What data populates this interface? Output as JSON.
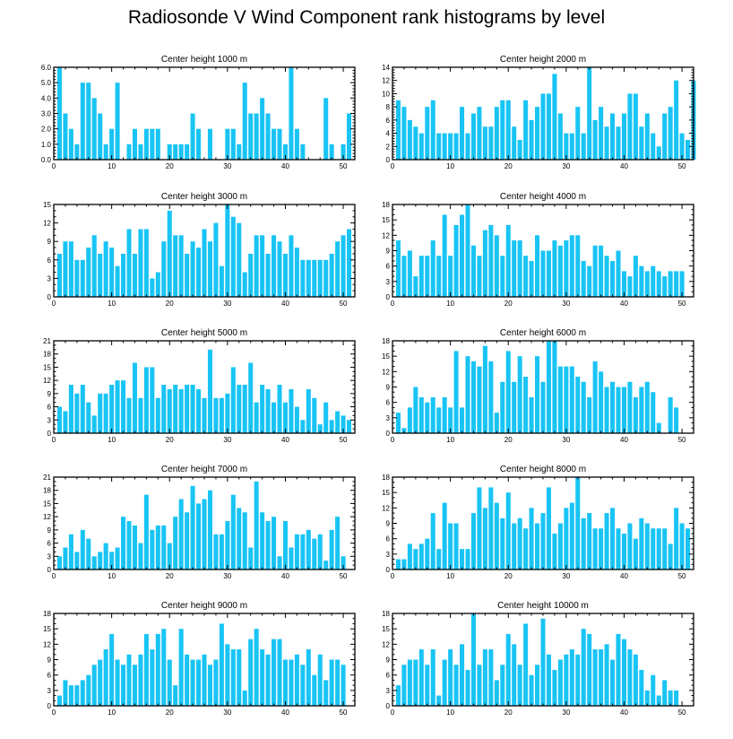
{
  "title": "Radiosonde V Wind Component rank histograms by level",
  "colors": {
    "bar": "#19c4f5",
    "axis": "#000000",
    "background": "#ffffff"
  },
  "chart_data": [
    {
      "type": "bar",
      "title": "Center height 1000 m",
      "xlim": [
        0,
        52
      ],
      "ylim": [
        0,
        6
      ],
      "xticks": [
        0,
        10,
        20,
        30,
        40,
        50
      ],
      "yticks": [
        0,
        1,
        2,
        3,
        4,
        5,
        6
      ],
      "ytick_labels": [
        "0.0",
        "1.0",
        "2.0",
        "3.0",
        "4.0",
        "5.0",
        "6.0"
      ],
      "values": [
        6,
        3,
        2,
        1,
        5,
        5,
        4,
        3,
        1,
        2,
        5,
        0,
        1,
        2,
        1,
        2,
        2,
        2,
        0,
        1,
        1,
        1,
        1,
        3,
        2,
        0,
        2,
        0,
        0,
        2,
        2,
        1,
        5,
        3,
        3,
        4,
        3,
        2,
        2,
        1,
        6,
        2,
        1,
        0,
        0,
        0,
        4,
        1,
        0,
        1,
        3
      ]
    },
    {
      "type": "bar",
      "title": "Center height 2000 m",
      "xlim": [
        0,
        52
      ],
      "ylim": [
        0,
        14
      ],
      "xticks": [
        0,
        10,
        20,
        30,
        40,
        50
      ],
      "yticks": [
        0,
        2,
        4,
        6,
        8,
        10,
        12,
        14
      ],
      "ytick_labels": [
        "0",
        "2",
        "4",
        "6",
        "8",
        "10",
        "12",
        "14"
      ],
      "values": [
        9,
        8,
        6,
        5,
        4,
        8,
        9,
        4,
        4,
        4,
        4,
        8,
        4,
        7,
        8,
        5,
        5,
        8,
        9,
        9,
        5,
        3,
        9,
        6,
        8,
        10,
        10,
        13,
        7,
        4,
        4,
        8,
        4,
        14,
        6,
        8,
        5,
        7,
        5,
        7,
        10,
        10,
        5,
        7,
        4,
        2,
        7,
        8,
        12,
        4,
        3,
        12
      ]
    },
    {
      "type": "bar",
      "title": "Center height 3000 m",
      "xlim": [
        0,
        52
      ],
      "ylim": [
        0,
        15
      ],
      "xticks": [
        0,
        10,
        20,
        30,
        40,
        50
      ],
      "yticks": [
        0,
        3,
        6,
        9,
        12,
        15
      ],
      "ytick_labels": [
        "0",
        "3",
        "6",
        "9",
        "12",
        "15"
      ],
      "values": [
        7,
        9,
        9,
        6,
        6,
        8,
        10,
        7,
        9,
        8,
        5,
        7,
        11,
        7,
        11,
        11,
        3,
        4,
        9,
        14,
        10,
        10,
        7,
        9,
        8,
        11,
        9,
        12,
        5,
        15,
        13,
        12,
        4,
        7,
        10,
        10,
        7,
        10,
        9,
        7,
        10,
        8,
        6,
        6,
        6,
        6,
        6,
        7,
        9,
        10,
        11
      ]
    },
    {
      "type": "bar",
      "title": "Center height 4000 m",
      "xlim": [
        0,
        52
      ],
      "ylim": [
        0,
        18
      ],
      "xticks": [
        0,
        10,
        20,
        30,
        40,
        50
      ],
      "yticks": [
        0,
        3,
        6,
        9,
        12,
        15,
        18
      ],
      "ytick_labels": [
        "0",
        "3",
        "6",
        "9",
        "12",
        "15",
        "18"
      ],
      "values": [
        11,
        8,
        9,
        4,
        8,
        8,
        11,
        8,
        16,
        8,
        14,
        16,
        18,
        10,
        8,
        13,
        14,
        12,
        8,
        14,
        11,
        11,
        8,
        7,
        12,
        9,
        9,
        11,
        10,
        11,
        12,
        12,
        7,
        6,
        10,
        10,
        8,
        7,
        9,
        5,
        4,
        8,
        6,
        5,
        6,
        5,
        4,
        5,
        5,
        5
      ]
    },
    {
      "type": "bar",
      "title": "Center height 5000 m",
      "xlim": [
        0,
        52
      ],
      "ylim": [
        0,
        21
      ],
      "xticks": [
        0,
        10,
        20,
        30,
        40,
        50
      ],
      "yticks": [
        0,
        3,
        6,
        9,
        12,
        15,
        18,
        21
      ],
      "ytick_labels": [
        "0",
        "3",
        "6",
        "9",
        "12",
        "15",
        "18",
        "21"
      ],
      "values": [
        6,
        5,
        11,
        9,
        11,
        7,
        4,
        9,
        9,
        11,
        12,
        12,
        8,
        16,
        8,
        15,
        15,
        8,
        11,
        10,
        11,
        10,
        11,
        11,
        10,
        8,
        19,
        8,
        8,
        9,
        15,
        11,
        11,
        16,
        7,
        11,
        10,
        7,
        11,
        7,
        10,
        6,
        3,
        10,
        8,
        2,
        7,
        3,
        5,
        4,
        3
      ]
    },
    {
      "type": "bar",
      "title": "Center height 6000 m",
      "xlim": [
        0,
        52
      ],
      "ylim": [
        0,
        18
      ],
      "xticks": [
        0,
        10,
        20,
        30,
        40,
        50
      ],
      "yticks": [
        0,
        3,
        6,
        9,
        12,
        15,
        18
      ],
      "ytick_labels": [
        "0",
        "3",
        "6",
        "9",
        "12",
        "15",
        "18"
      ],
      "values": [
        4,
        1,
        5,
        9,
        7,
        6,
        7,
        5,
        7,
        5,
        16,
        5,
        15,
        14,
        13,
        17,
        14,
        4,
        10,
        16,
        10,
        15,
        11,
        7,
        15,
        10,
        18,
        18,
        13,
        13,
        13,
        11,
        10,
        7,
        14,
        12,
        9,
        10,
        9,
        9,
        10,
        7,
        9,
        10,
        8,
        2,
        0,
        7,
        5
      ]
    },
    {
      "type": "bar",
      "title": "Center height 7000 m",
      "xlim": [
        0,
        52
      ],
      "ylim": [
        0,
        21
      ],
      "xticks": [
        0,
        10,
        20,
        30,
        40,
        50
      ],
      "yticks": [
        0,
        3,
        6,
        9,
        12,
        15,
        18,
        21
      ],
      "ytick_labels": [
        "0",
        "3",
        "6",
        "9",
        "12",
        "15",
        "18",
        "21"
      ],
      "values": [
        3,
        5,
        8,
        4,
        9,
        7,
        3,
        4,
        6,
        4,
        5,
        12,
        11,
        10,
        6,
        17,
        9,
        10,
        10,
        6,
        12,
        16,
        13,
        19,
        15,
        16,
        18,
        8,
        8,
        11,
        17,
        14,
        13,
        5,
        20,
        13,
        11,
        12,
        3,
        11,
        5,
        8,
        8,
        9,
        7,
        8,
        2,
        9,
        12,
        3
      ]
    },
    {
      "type": "bar",
      "title": "Center height 8000 m",
      "xlim": [
        0,
        52
      ],
      "ylim": [
        0,
        18
      ],
      "xticks": [
        0,
        10,
        20,
        30,
        40,
        50
      ],
      "yticks": [
        0,
        3,
        6,
        9,
        12,
        15,
        18
      ],
      "ytick_labels": [
        "0",
        "3",
        "6",
        "9",
        "12",
        "15",
        "18"
      ],
      "values": [
        2,
        2,
        5,
        4,
        5,
        6,
        11,
        4,
        13,
        9,
        9,
        4,
        4,
        11,
        16,
        12,
        16,
        13,
        10,
        15,
        9,
        10,
        8,
        12,
        9,
        11,
        16,
        7,
        9,
        12,
        13,
        18,
        10,
        11,
        8,
        8,
        11,
        12,
        8,
        7,
        9,
        6,
        10,
        9,
        8,
        8,
        8,
        5,
        12,
        9,
        8
      ]
    },
    {
      "type": "bar",
      "title": "Center height 9000 m",
      "xlim": [
        0,
        52
      ],
      "ylim": [
        0,
        18
      ],
      "xticks": [
        0,
        10,
        20,
        30,
        40,
        50
      ],
      "yticks": [
        0,
        3,
        6,
        9,
        12,
        15,
        18
      ],
      "ytick_labels": [
        "0",
        "3",
        "6",
        "9",
        "12",
        "15",
        "18"
      ],
      "values": [
        2,
        5,
        4,
        4,
        5,
        6,
        8,
        9,
        11,
        14,
        9,
        8,
        10,
        8,
        10,
        14,
        11,
        14,
        15,
        9,
        4,
        15,
        10,
        9,
        9,
        10,
        8,
        9,
        16,
        12,
        11,
        11,
        3,
        13,
        15,
        11,
        10,
        13,
        13,
        9,
        9,
        10,
        8,
        11,
        6,
        10,
        5,
        9,
        9,
        8
      ]
    },
    {
      "type": "bar",
      "title": "Center height 10000 m",
      "xlim": [
        0,
        52
      ],
      "ylim": [
        0,
        18
      ],
      "xticks": [
        0,
        10,
        20,
        30,
        40,
        50
      ],
      "yticks": [
        0,
        3,
        6,
        9,
        12,
        15,
        18
      ],
      "ytick_labels": [
        "0",
        "3",
        "6",
        "9",
        "12",
        "15",
        "18"
      ],
      "values": [
        4,
        8,
        9,
        9,
        11,
        8,
        11,
        2,
        9,
        11,
        8,
        12,
        7,
        18,
        8,
        11,
        11,
        5,
        8,
        14,
        12,
        8,
        16,
        6,
        8,
        17,
        10,
        7,
        9,
        10,
        11,
        10,
        15,
        14,
        11,
        11,
        12,
        9,
        14,
        13,
        11,
        10,
        7,
        3,
        6,
        2,
        5,
        3,
        3
      ]
    }
  ]
}
